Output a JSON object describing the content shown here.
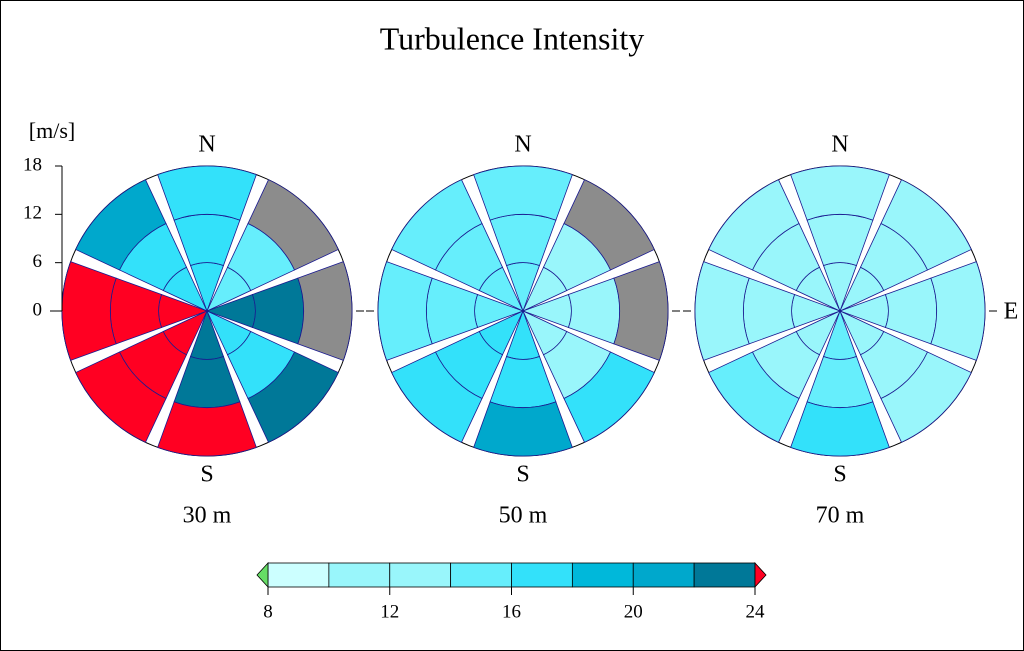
{
  "chart_data": {
    "type": "polar-heatmap",
    "title": "Turbulence Intensity",
    "radial_label": "[m/s]",
    "rlim": [
      0,
      18
    ],
    "rticks": [
      0,
      6,
      12,
      18
    ],
    "missing_color": "#8c8c8c",
    "panels": [
      {
        "label": "30 m",
        "n_label": "N",
        "s_label": "S",
        "values": [
          [
            17,
            17,
            17
          ],
          [
            15,
            15,
            null
          ],
          [
            23,
            23,
            null
          ],
          [
            17,
            17,
            23
          ],
          [
            23,
            23,
            25
          ],
          [
            25,
            25,
            25
          ],
          [
            25,
            25,
            25
          ],
          [
            17,
            17,
            21
          ]
        ]
      },
      {
        "label": "50 m",
        "n_label": "N",
        "s_label": "S",
        "values": [
          [
            15,
            15,
            15
          ],
          [
            13,
            13,
            null
          ],
          [
            13,
            13,
            null
          ],
          [
            13,
            13,
            17
          ],
          [
            17,
            17,
            21
          ],
          [
            17,
            17,
            17
          ],
          [
            15,
            15,
            15
          ],
          [
            15,
            15,
            15
          ]
        ]
      },
      {
        "label": "70 m",
        "n_label": "N",
        "s_label": "S",
        "e_label": "E",
        "values": [
          [
            13,
            13,
            13
          ],
          [
            13,
            13,
            13
          ],
          [
            13,
            13,
            13
          ],
          [
            13,
            13,
            13
          ],
          [
            15,
            15,
            17
          ],
          [
            13,
            13,
            15
          ],
          [
            13,
            13,
            13
          ],
          [
            13,
            13,
            13
          ]
        ]
      }
    ],
    "colorbar": {
      "levels": [
        8,
        10,
        12,
        14,
        16,
        18,
        20,
        22,
        24
      ],
      "colors": [
        "#ccffff",
        "#99f6fb",
        "#99f6fb",
        "#66eefc",
        "#33e1fa",
        "#00b8da",
        "#00a8cc",
        "#007898"
      ],
      "under_color": "#66dd66",
      "over_color": "#ff0022",
      "ticks": [
        8,
        12,
        16,
        20,
        24
      ]
    }
  }
}
